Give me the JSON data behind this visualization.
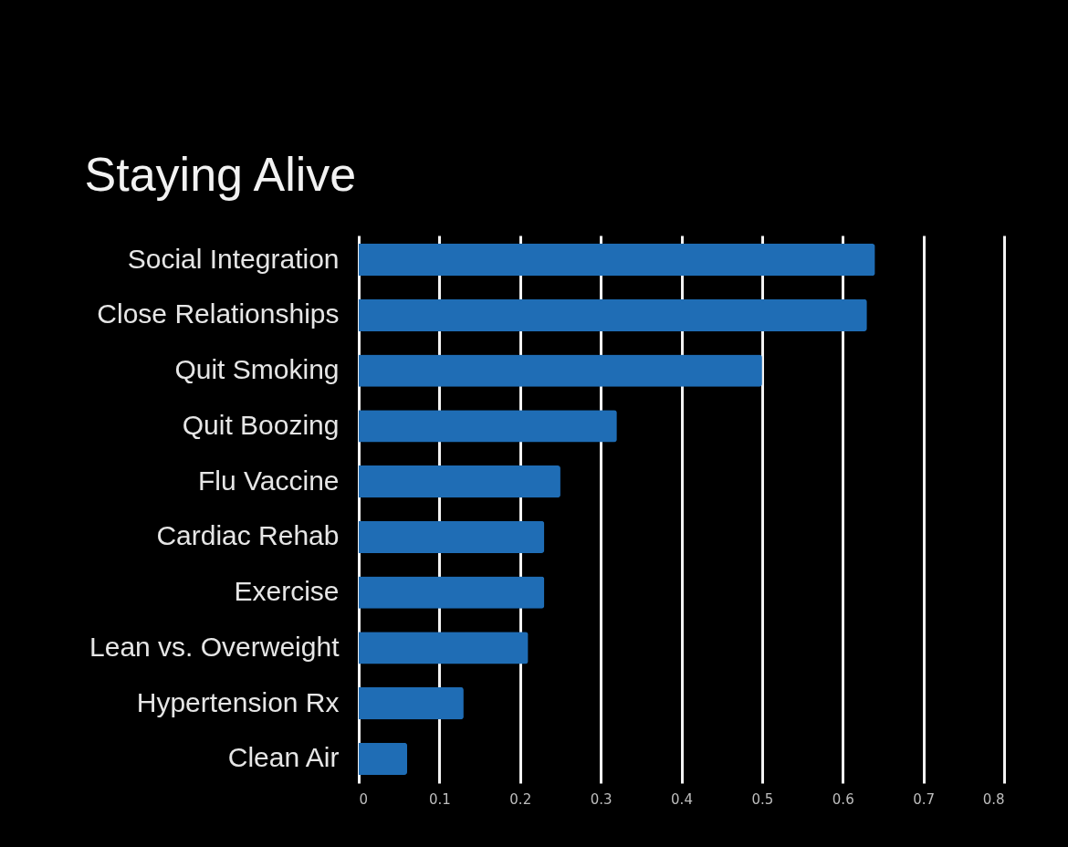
{
  "chart_data": {
    "type": "bar",
    "orientation": "horizontal",
    "title": "Staying Alive",
    "categories": [
      "Social Integration",
      "Close Relationships",
      "Quit Smoking",
      "Quit Boozing",
      "Flu Vaccine",
      "Cardiac Rehab",
      "Exercise",
      "Lean vs. Overweight",
      "Hypertension Rx",
      "Clean Air"
    ],
    "values": [
      0.64,
      0.63,
      0.5,
      0.32,
      0.25,
      0.23,
      0.23,
      0.21,
      0.13,
      0.06
    ],
    "color": "#1f6db5",
    "xlim": [
      0,
      0.8
    ],
    "xticks": [
      0,
      0.1,
      0.2,
      0.3,
      0.4,
      0.5,
      0.6,
      0.7,
      0.8
    ],
    "grid": "x"
  }
}
